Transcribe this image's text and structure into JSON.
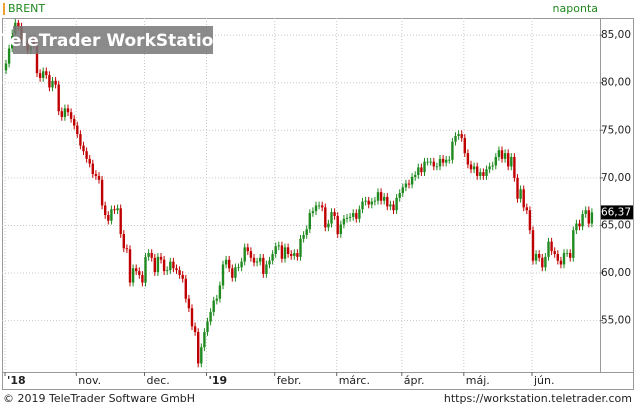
{
  "chart_data": {
    "type": "candlestick",
    "watermark": "TeleTrader WorkStation",
    "frequency": "naponta",
    "footer_left": "© 2019 TeleTrader Software GmbH",
    "footer_right": "https://workstation.teletrader.com",
    "up_color": "#1f8a1f",
    "down_color": "#c00000",
    "grid": true,
    "ylim": [
      49.6,
      86.8
    ],
    "yticks": [
      {
        "value": 55,
        "label": "55,00"
      },
      {
        "value": 60,
        "label": "60,00"
      },
      {
        "value": 65,
        "label": "65,00"
      },
      {
        "value": 70,
        "label": "70,00"
      },
      {
        "value": 75,
        "label": "75,00"
      },
      {
        "value": 80,
        "label": "80,00"
      },
      {
        "value": 85,
        "label": "85,00"
      }
    ],
    "xticks": [
      {
        "value": 0,
        "label": "'18"
      },
      {
        "value": 23,
        "label": "nov."
      },
      {
        "value": 45,
        "label": "dec."
      },
      {
        "value": 65,
        "label": "'19"
      },
      {
        "value": 87,
        "label": "febr."
      },
      {
        "value": 107,
        "label": "márc."
      },
      {
        "value": 128,
        "label": "ápr."
      },
      {
        "value": 148,
        "label": "máj."
      },
      {
        "value": 170,
        "label": "jún."
      }
    ],
    "last_price": {
      "value": 66.37,
      "label": "66,37"
    },
    "series": [
      {
        "name": "BRENT",
        "values": [
          [
            81.3,
            82.4,
            80.9,
            82.0
          ],
          [
            82.0,
            84.0,
            81.6,
            83.6
          ],
          [
            83.6,
            85.6,
            83.2,
            85.2
          ],
          [
            85.2,
            86.7,
            84.8,
            86.3
          ],
          [
            86.3,
            86.6,
            85.5,
            85.9
          ],
          [
            85.9,
            86.3,
            84.2,
            84.6
          ],
          [
            84.6,
            85.0,
            83.8,
            84.2
          ],
          [
            84.2,
            84.6,
            83.0,
            83.4
          ],
          [
            83.4,
            85.0,
            83.0,
            84.6
          ],
          [
            84.6,
            85.0,
            83.6,
            84.0
          ],
          [
            84.0,
            84.4,
            80.6,
            81.0
          ],
          [
            81.0,
            81.4,
            80.1,
            80.5
          ],
          [
            80.5,
            81.6,
            80.1,
            81.2
          ],
          [
            81.2,
            81.6,
            80.4,
            80.8
          ],
          [
            80.8,
            81.2,
            79.1,
            79.5
          ],
          [
            79.5,
            80.6,
            79.1,
            80.2
          ],
          [
            80.2,
            80.6,
            79.4,
            79.8
          ],
          [
            79.8,
            80.2,
            76.6,
            77.0
          ],
          [
            77.0,
            77.4,
            76.0,
            76.4
          ],
          [
            76.4,
            77.7,
            76.0,
            77.3
          ],
          [
            77.3,
            77.7,
            76.5,
            76.9
          ],
          [
            76.9,
            77.3,
            75.8,
            76.2
          ],
          [
            76.2,
            76.6,
            75.1,
            75.5
          ],
          [
            75.5,
            75.9,
            74.2,
            74.6
          ],
          [
            74.6,
            75.0,
            73.0,
            73.4
          ],
          [
            73.4,
            73.8,
            72.4,
            72.8
          ],
          [
            72.8,
            73.2,
            71.6,
            72.0
          ],
          [
            72.0,
            72.4,
            71.1,
            71.5
          ],
          [
            71.5,
            71.9,
            70.0,
            70.4
          ],
          [
            70.4,
            70.8,
            69.8,
            70.2
          ],
          [
            70.2,
            70.6,
            69.4,
            69.8
          ],
          [
            69.8,
            70.2,
            66.7,
            67.1
          ],
          [
            67.1,
            67.5,
            65.7,
            66.1
          ],
          [
            66.1,
            66.5,
            65.1,
            65.5
          ],
          [
            65.5,
            67.1,
            65.1,
            66.7
          ],
          [
            66.7,
            67.1,
            66.2,
            66.6
          ],
          [
            66.6,
            67.2,
            66.2,
            66.8
          ],
          [
            66.8,
            67.2,
            63.7,
            64.1
          ],
          [
            64.1,
            64.5,
            62.2,
            62.6
          ],
          [
            62.6,
            63.0,
            62.1,
            62.5
          ],
          [
            62.5,
            62.9,
            58.6,
            59.0
          ],
          [
            59.0,
            60.9,
            58.6,
            60.5
          ],
          [
            60.5,
            60.9,
            59.8,
            60.2
          ],
          [
            60.2,
            60.6,
            59.4,
            59.8
          ],
          [
            59.8,
            60.2,
            58.6,
            59.0
          ],
          [
            59.0,
            62.1,
            58.6,
            61.7
          ],
          [
            61.7,
            62.5,
            61.3,
            62.1
          ],
          [
            62.1,
            62.5,
            61.2,
            61.6
          ],
          [
            61.6,
            62.0,
            59.7,
            60.1
          ],
          [
            60.1,
            62.1,
            59.7,
            61.7
          ],
          [
            61.7,
            62.1,
            61.0,
            61.4
          ],
          [
            61.4,
            61.8,
            59.8,
            60.2
          ],
          [
            60.2,
            60.7,
            59.8,
            60.3
          ],
          [
            60.3,
            61.6,
            59.9,
            61.2
          ],
          [
            61.2,
            61.6,
            60.1,
            60.5
          ],
          [
            60.5,
            60.9,
            59.9,
            60.3
          ],
          [
            60.3,
            60.7,
            59.4,
            59.8
          ],
          [
            59.8,
            60.2,
            59.0,
            59.4
          ],
          [
            59.4,
            59.8,
            56.9,
            57.3
          ],
          [
            57.3,
            57.7,
            55.9,
            56.3
          ],
          [
            56.3,
            56.7,
            54.0,
            54.4
          ],
          [
            54.4,
            54.8,
            53.4,
            53.8
          ],
          [
            53.8,
            54.2,
            50.1,
            50.5
          ],
          [
            50.5,
            52.6,
            50.1,
            52.2
          ],
          [
            52.2,
            54.2,
            51.8,
            53.8
          ],
          [
            53.8,
            55.3,
            53.4,
            54.9
          ],
          [
            54.9,
            56.3,
            54.5,
            55.9
          ],
          [
            55.9,
            57.5,
            55.5,
            57.1
          ],
          [
            57.1,
            57.7,
            56.7,
            57.3
          ],
          [
            57.3,
            59.1,
            56.9,
            58.7
          ],
          [
            58.7,
            61.3,
            58.3,
            60.9
          ],
          [
            60.9,
            61.8,
            60.5,
            61.4
          ],
          [
            61.4,
            61.8,
            60.1,
            60.5
          ],
          [
            60.5,
            60.9,
            59.1,
            59.5
          ],
          [
            59.5,
            61.0,
            59.1,
            60.6
          ],
          [
            60.6,
            61.0,
            60.2,
            60.6
          ],
          [
            60.6,
            61.6,
            60.2,
            61.2
          ],
          [
            61.2,
            63.1,
            60.8,
            62.7
          ],
          [
            62.7,
            63.1,
            61.9,
            62.3
          ],
          [
            62.3,
            62.7,
            61.2,
            61.6
          ],
          [
            61.6,
            62.0,
            60.7,
            61.1
          ],
          [
            61.1,
            61.6,
            60.7,
            61.2
          ],
          [
            61.2,
            62.0,
            60.8,
            61.6
          ],
          [
            61.6,
            62.0,
            59.5,
            59.9
          ],
          [
            59.9,
            61.3,
            59.5,
            60.9
          ],
          [
            60.9,
            61.7,
            60.5,
            61.3
          ],
          [
            61.3,
            62.4,
            60.9,
            62.0
          ],
          [
            62.0,
            63.2,
            61.6,
            62.8
          ],
          [
            62.8,
            63.3,
            62.4,
            62.9
          ],
          [
            62.9,
            63.3,
            61.1,
            61.5
          ],
          [
            61.5,
            63.1,
            61.1,
            62.7
          ],
          [
            62.7,
            63.1,
            61.6,
            62.0
          ],
          [
            62.0,
            62.4,
            61.4,
            61.8
          ],
          [
            61.8,
            62.5,
            61.4,
            62.1
          ],
          [
            62.1,
            62.5,
            61.3,
            61.7
          ],
          [
            61.7,
            64.0,
            61.3,
            63.6
          ],
          [
            63.6,
            64.4,
            63.2,
            64.0
          ],
          [
            64.0,
            65.0,
            63.6,
            64.6
          ],
          [
            64.6,
            66.7,
            64.2,
            66.3
          ],
          [
            66.3,
            66.9,
            65.9,
            66.5
          ],
          [
            66.5,
            67.5,
            66.1,
            67.1
          ],
          [
            67.1,
            67.5,
            66.7,
            67.1
          ],
          [
            67.1,
            67.5,
            66.5,
            66.9
          ],
          [
            66.9,
            67.3,
            64.4,
            64.8
          ],
          [
            64.8,
            65.6,
            64.4,
            65.2
          ],
          [
            65.2,
            66.8,
            64.8,
            66.4
          ],
          [
            66.4,
            66.8,
            65.6,
            66.0
          ],
          [
            66.0,
            66.4,
            63.7,
            64.1
          ],
          [
            64.1,
            65.5,
            63.7,
            65.1
          ],
          [
            65.1,
            66.1,
            64.7,
            65.7
          ],
          [
            65.7,
            66.2,
            65.3,
            65.8
          ],
          [
            65.8,
            66.3,
            65.4,
            65.9
          ],
          [
            65.9,
            66.7,
            65.5,
            66.3
          ],
          [
            66.3,
            66.7,
            65.3,
            65.7
          ],
          [
            65.7,
            67.1,
            65.3,
            66.7
          ],
          [
            66.7,
            67.9,
            66.3,
            67.5
          ],
          [
            67.5,
            68.0,
            67.1,
            67.6
          ],
          [
            67.6,
            68.0,
            66.8,
            67.2
          ],
          [
            67.2,
            67.9,
            66.8,
            67.5
          ],
          [
            67.5,
            68.0,
            67.1,
            67.6
          ],
          [
            67.6,
            68.9,
            67.2,
            68.5
          ],
          [
            68.5,
            68.9,
            67.2,
            67.6
          ],
          [
            67.6,
            68.4,
            67.2,
            68.0
          ],
          [
            68.0,
            68.4,
            66.6,
            67.0
          ],
          [
            67.0,
            67.6,
            66.6,
            67.2
          ],
          [
            67.2,
            67.6,
            66.2,
            66.6
          ],
          [
            66.6,
            68.3,
            66.2,
            67.9
          ],
          [
            67.9,
            68.8,
            67.5,
            68.4
          ],
          [
            68.4,
            69.4,
            68.0,
            69.0
          ],
          [
            69.0,
            69.8,
            68.6,
            69.4
          ],
          [
            69.4,
            69.8,
            68.9,
            69.3
          ],
          [
            69.3,
            70.5,
            68.9,
            70.1
          ],
          [
            70.1,
            70.7,
            69.7,
            70.3
          ],
          [
            70.3,
            71.5,
            69.9,
            71.1
          ],
          [
            71.1,
            71.5,
            70.2,
            70.6
          ],
          [
            70.6,
            72.1,
            70.2,
            71.7
          ],
          [
            71.7,
            72.1,
            71.3,
            71.7
          ],
          [
            71.7,
            72.1,
            71.3,
            71.7
          ],
          [
            71.7,
            72.1,
            70.8,
            71.2
          ],
          [
            71.2,
            71.6,
            70.8,
            71.2
          ],
          [
            71.2,
            72.4,
            70.8,
            72.0
          ],
          [
            72.0,
            72.4,
            71.2,
            71.6
          ],
          [
            71.6,
            72.3,
            71.2,
            71.9
          ],
          [
            71.9,
            72.3,
            71.5,
            71.9
          ],
          [
            71.9,
            74.2,
            71.5,
            73.8
          ],
          [
            73.8,
            74.8,
            73.4,
            74.4
          ],
          [
            74.4,
            75.0,
            74.0,
            74.6
          ],
          [
            74.6,
            75.0,
            73.8,
            74.2
          ],
          [
            74.2,
            74.6,
            72.2,
            72.6
          ],
          [
            72.6,
            73.0,
            71.0,
            71.4
          ],
          [
            71.4,
            71.8,
            70.5,
            70.9
          ],
          [
            70.9,
            71.6,
            70.5,
            71.2
          ],
          [
            71.2,
            71.6,
            69.8,
            70.2
          ],
          [
            70.2,
            71.0,
            69.8,
            70.6
          ],
          [
            70.6,
            71.0,
            69.8,
            70.2
          ],
          [
            70.2,
            71.3,
            69.8,
            70.9
          ],
          [
            70.9,
            71.6,
            70.5,
            71.2
          ],
          [
            71.2,
            71.7,
            70.8,
            71.3
          ],
          [
            71.3,
            72.6,
            70.9,
            72.2
          ],
          [
            72.2,
            73.3,
            71.8,
            72.9
          ],
          [
            72.9,
            73.3,
            71.6,
            72.0
          ],
          [
            72.0,
            73.0,
            71.6,
            72.6
          ],
          [
            72.6,
            73.0,
            70.8,
            71.2
          ],
          [
            71.2,
            72.6,
            70.8,
            72.2
          ],
          [
            72.2,
            72.6,
            69.6,
            70.0
          ],
          [
            70.0,
            70.4,
            67.4,
            67.8
          ],
          [
            67.8,
            69.2,
            67.4,
            68.8
          ],
          [
            68.8,
            69.2,
            66.5,
            66.9
          ],
          [
            66.9,
            67.3,
            66.2,
            66.6
          ],
          [
            66.6,
            67.0,
            64.1,
            64.5
          ],
          [
            64.5,
            64.9,
            60.9,
            61.3
          ],
          [
            61.3,
            62.4,
            60.9,
            62.0
          ],
          [
            62.0,
            62.4,
            61.2,
            61.6
          ],
          [
            61.6,
            62.0,
            60.2,
            60.6
          ],
          [
            60.6,
            62.1,
            60.2,
            61.7
          ],
          [
            61.7,
            63.7,
            61.3,
            63.3
          ],
          [
            63.3,
            63.7,
            61.9,
            62.3
          ],
          [
            62.3,
            62.7,
            61.6,
            62.0
          ],
          [
            62.0,
            62.4,
            60.9,
            61.3
          ],
          [
            61.3,
            61.7,
            60.5,
            60.9
          ],
          [
            60.9,
            62.5,
            60.5,
            62.1
          ],
          [
            62.1,
            62.5,
            61.7,
            62.1
          ],
          [
            62.1,
            62.5,
            61.2,
            61.6
          ],
          [
            61.6,
            64.9,
            61.2,
            64.5
          ],
          [
            64.5,
            65.6,
            64.1,
            65.2
          ],
          [
            65.2,
            65.6,
            64.5,
            64.9
          ],
          [
            64.9,
            66.6,
            64.5,
            66.2
          ],
          [
            66.2,
            67.0,
            65.8,
            66.6
          ],
          [
            66.6,
            67.0,
            64.8,
            65.2
          ],
          [
            65.2,
            66.8,
            64.8,
            66.37
          ]
        ]
      }
    ]
  }
}
